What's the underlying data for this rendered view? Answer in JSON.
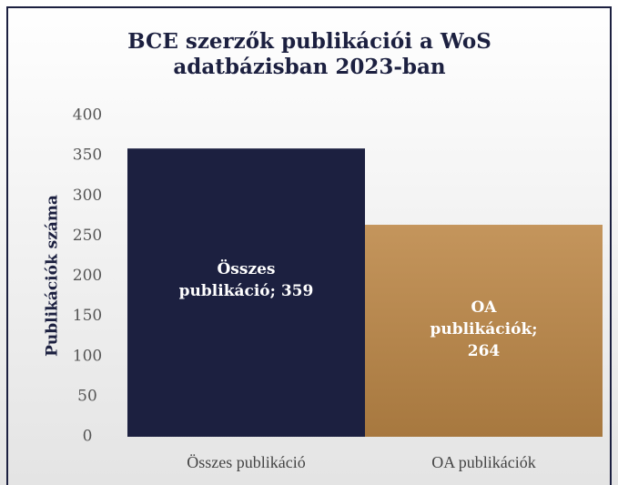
{
  "chart_data": {
    "type": "bar",
    "title": "BCE szerzők publikációi a WoS adatbázisban 2023-ban",
    "y_label": "Publikációk száma",
    "categories": [
      "Összes publikáció",
      "OA publikációk"
    ],
    "values": [
      359,
      264
    ],
    "value_labels": [
      "Összes publikáció; 359",
      "OA publikációk; 264"
    ],
    "colors": [
      "#1c2040",
      "#c0915a"
    ],
    "ylim": [
      0,
      400
    ],
    "yticks": [
      0,
      50,
      100,
      150,
      200,
      250,
      300,
      350,
      400
    ],
    "grid": false
  }
}
